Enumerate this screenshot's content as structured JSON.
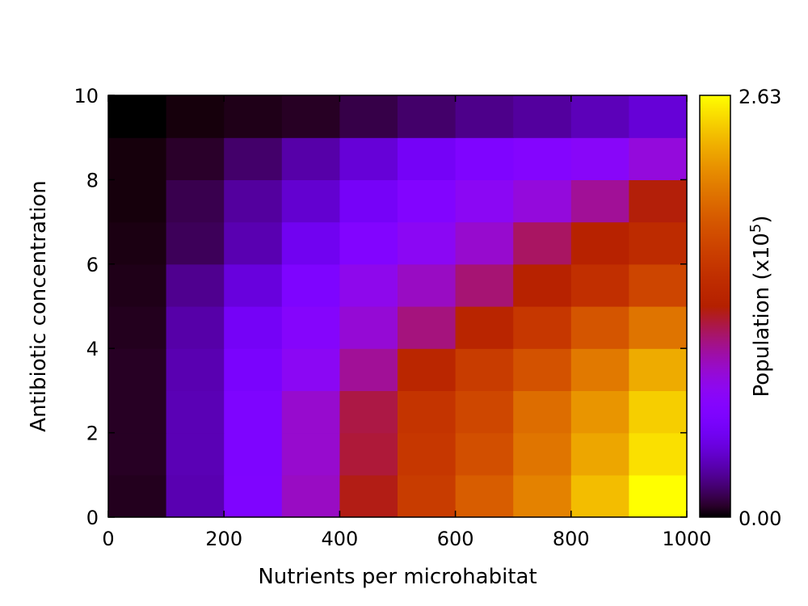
{
  "chart_data": {
    "type": "heatmap",
    "xlabel": "Nutrients per microhabitat",
    "ylabel": "Antibiotic concentration",
    "colorbar": {
      "label_main": "Population (x10",
      "label_sup": "5",
      "label_close": ")",
      "min": 0.0,
      "max": 2.63,
      "min_label": "0.00",
      "max_label": "2.63",
      "colormap": "gnuplot pm3d 7,5,15 (black-purple-red-orange-yellow)"
    },
    "xlim": [
      0,
      1000
    ],
    "ylim": [
      0,
      10
    ],
    "x_ticks": [
      0,
      200,
      400,
      600,
      800,
      1000
    ],
    "x_tick_labels": [
      "0",
      "200",
      "400",
      "600",
      "800",
      "1000"
    ],
    "y_ticks": [
      0,
      2,
      4,
      6,
      8,
      10
    ],
    "y_tick_labels": [
      "0",
      "2",
      "4",
      "6",
      "8",
      "10"
    ],
    "x_bins": [
      0,
      100,
      200,
      300,
      400,
      500,
      600,
      700,
      800,
      900,
      1000
    ],
    "y_bins": [
      0,
      1,
      2,
      3,
      4,
      5,
      6,
      7,
      8,
      9,
      10
    ],
    "values": [
      [
        0.05,
        0.32,
        0.65,
        0.95,
        1.28,
        1.62,
        1.88,
        2.1,
        2.38,
        2.63
      ],
      [
        0.06,
        0.33,
        0.64,
        0.92,
        1.22,
        1.58,
        1.78,
        2.03,
        2.28,
        2.52
      ],
      [
        0.06,
        0.33,
        0.64,
        0.92,
        1.2,
        1.55,
        1.72,
        1.98,
        2.2,
        2.45
      ],
      [
        0.06,
        0.32,
        0.6,
        0.78,
        1.05,
        1.4,
        1.62,
        1.8,
        2.05,
        2.3
      ],
      [
        0.05,
        0.3,
        0.55,
        0.72,
        0.9,
        1.1,
        1.38,
        1.58,
        1.82,
        2.02
      ],
      [
        0.04,
        0.25,
        0.44,
        0.64,
        0.82,
        0.95,
        1.12,
        1.35,
        1.5,
        1.7
      ],
      [
        0.03,
        0.15,
        0.32,
        0.52,
        0.68,
        0.78,
        0.92,
        1.15,
        1.35,
        1.45
      ],
      [
        0.02,
        0.13,
        0.28,
        0.4,
        0.56,
        0.68,
        0.78,
        0.88,
        1.05,
        1.3
      ],
      [
        0.02,
        0.07,
        0.18,
        0.3,
        0.42,
        0.55,
        0.65,
        0.7,
        0.75,
        0.88
      ],
      [
        0.0,
        0.02,
        0.04,
        0.06,
        0.12,
        0.18,
        0.24,
        0.28,
        0.34,
        0.42
      ]
    ]
  }
}
